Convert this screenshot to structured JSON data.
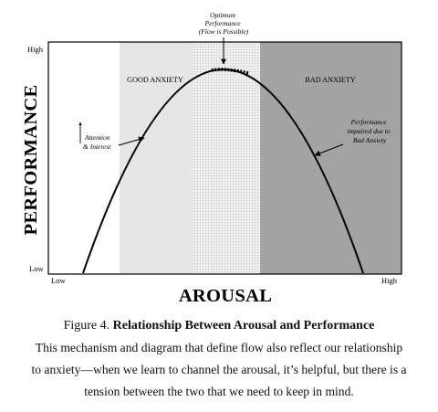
{
  "diagram": {
    "top_annotation": [
      "Optimum",
      "Performance",
      "(Flow is Possible)"
    ],
    "y_axis_title": "PERFORMANCE",
    "y_tick_high": "High",
    "y_tick_low": "Low",
    "x_axis_title": "AROUSAL",
    "x_tick_low": "Low",
    "x_tick_high": "High",
    "zone_good_label": "GOOD ANXIETY",
    "zone_bad_label": "BAD ANXIETY",
    "left_annotation": [
      "Attention",
      "& Interest"
    ],
    "right_annotation": [
      "Performance",
      "impaired due to",
      "Bad Anxiety"
    ],
    "colors": {
      "good_zone": "#e6e6e6",
      "flow_zone": "#efefef",
      "bad_zone": "#a3a3a3",
      "curve": "#000000"
    }
  },
  "caption": {
    "figure_number": "Figure 4.",
    "figure_title": "Relationship Between Arousal and Performance",
    "lines": [
      "This mechanism and diagram that define flow also reflect our relationship",
      "to anxiety—when we learn to channel the arousal, it’s helpful, but there is a",
      "tension between the two that we need to keep in mind."
    ]
  }
}
